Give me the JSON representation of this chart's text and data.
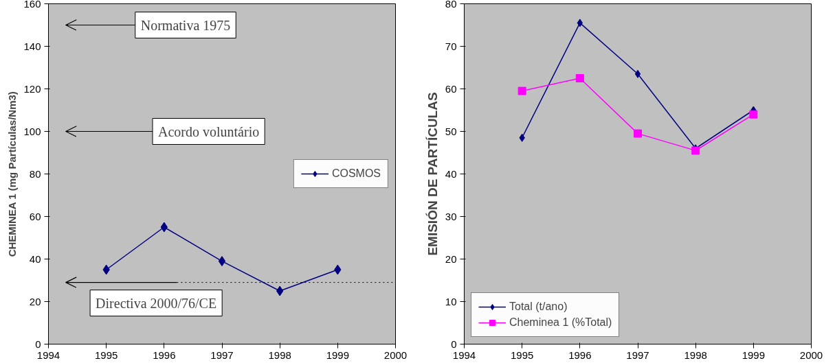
{
  "chart_data": [
    {
      "type": "line",
      "x": [
        1995,
        1996,
        1997,
        1998,
        1999
      ],
      "ylabel": "CHEMINEA 1 (mg Partículas/Nm3)",
      "series": [
        {
          "name": "COSMOS",
          "color": "#000080",
          "values": [
            35,
            55,
            39,
            25,
            35
          ],
          "marker": "diamond"
        }
      ],
      "xlim": [
        1994,
        2000
      ],
      "xticks": [
        1994,
        1995,
        1996,
        1997,
        1998,
        1999,
        2000
      ],
      "ylim": [
        0,
        160
      ],
      "yticks": [
        0,
        20,
        40,
        60,
        80,
        100,
        120,
        140,
        160
      ],
      "ref_lines": [
        {
          "axis": "y",
          "value": 150,
          "label": "Normativa 1975"
        },
        {
          "axis": "y",
          "value": 100,
          "label": "Acordo voluntário"
        },
        {
          "axis": "y",
          "value": 29,
          "label": "Directiva 2000/76/CE"
        },
        {
          "axis": "y",
          "value": 29,
          "line_style": "dotted"
        }
      ],
      "legend": "right",
      "grid": false
    },
    {
      "type": "line",
      "x": [
        1995,
        1996,
        1997,
        1998,
        1999
      ],
      "ylabel": "EMISIÓN DE PARTÍCULAS",
      "series": [
        {
          "name": "Total (t/ano)",
          "color": "#000080",
          "values": [
            48.5,
            75.5,
            63.5,
            46,
            55
          ],
          "marker": "diamond"
        },
        {
          "name": "Cheminea 1 (%Total)",
          "color": "#ff00ff",
          "values": [
            59.5,
            62.5,
            49.5,
            45.5,
            54
          ],
          "marker": "square"
        }
      ],
      "xlim": [
        1994,
        2000
      ],
      "xticks": [
        1994,
        1995,
        1996,
        1997,
        1998,
        1999,
        2000
      ],
      "ylim": [
        0,
        80
      ],
      "yticks": [
        0,
        10,
        20,
        30,
        40,
        50,
        60,
        70,
        80
      ],
      "legend": "bottom left",
      "grid": false
    }
  ]
}
